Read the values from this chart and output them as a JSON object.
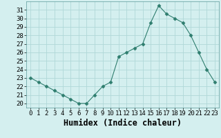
{
  "x": [
    0,
    1,
    2,
    3,
    4,
    5,
    6,
    7,
    8,
    9,
    10,
    11,
    12,
    13,
    14,
    15,
    16,
    17,
    18,
    19,
    20,
    21,
    22,
    23
  ],
  "y": [
    23,
    22.5,
    22,
    21.5,
    21,
    20.5,
    20,
    20,
    21,
    22,
    22.5,
    25.5,
    26,
    26.5,
    27,
    29.5,
    31.5,
    30.5,
    30,
    29.5,
    28,
    26,
    24,
    22.5
  ],
  "line_color": "#2e7d6e",
  "marker": "D",
  "marker_size": 2.5,
  "background_color": "#d4efef",
  "grid_color": "#b0d8d8",
  "xlabel": "Humidex (Indice chaleur)",
  "xlabel_weight": "bold",
  "ylim": [
    19.5,
    32
  ],
  "xlim": [
    -0.5,
    23.5
  ],
  "yticks": [
    20,
    21,
    22,
    23,
    24,
    25,
    26,
    27,
    28,
    29,
    30,
    31
  ],
  "xticks": [
    0,
    1,
    2,
    3,
    4,
    5,
    6,
    7,
    8,
    9,
    10,
    11,
    12,
    13,
    14,
    15,
    16,
    17,
    18,
    19,
    20,
    21,
    22,
    23
  ],
  "tick_fontsize": 6.5,
  "xlabel_fontsize": 8.5
}
